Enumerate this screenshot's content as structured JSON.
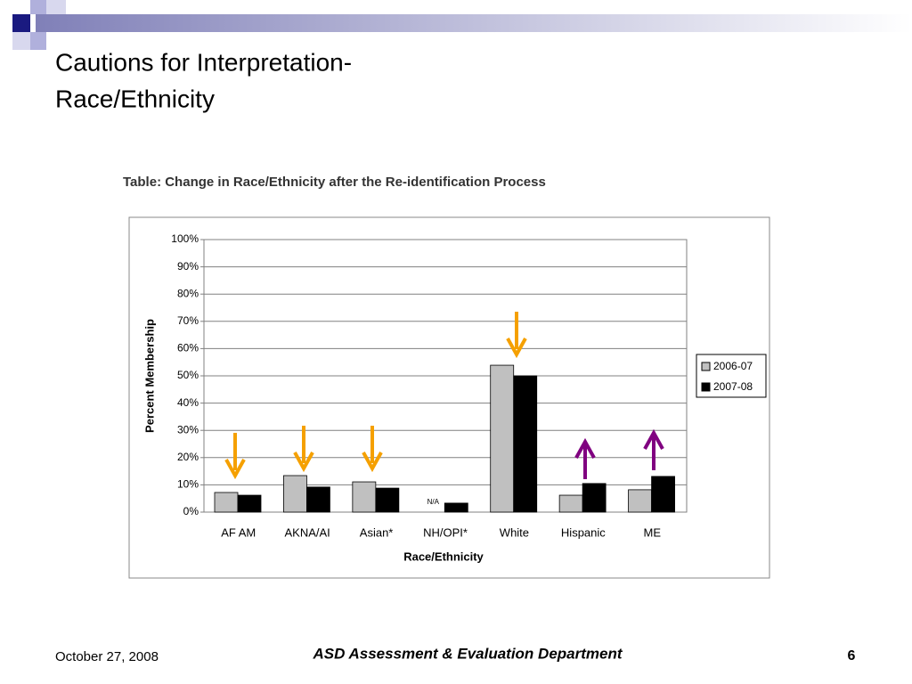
{
  "slide": {
    "title": [
      "Cautions for Interpretation-",
      "Race/Ethnicity"
    ],
    "date": "October 27, 2008",
    "footer": "ASD Assessment & Evaluation Department",
    "page_number": 6
  },
  "chart_data": {
    "type": "bar",
    "title": "Table: Change in Race/Ethnicity after the Re-identification Process",
    "x_label": "Race/Ethnicity",
    "y_label": "Percent Membership",
    "categories": [
      "AF AM",
      "AKNA/AI",
      "Asian*",
      "NH/OPI*",
      "White",
      "Hispanic",
      "ME"
    ],
    "series": [
      {
        "name": "2006-07",
        "color": "#c0c0c0",
        "values": [
          7.2,
          13.4,
          11.1,
          null,
          53.9,
          6.2,
          8.2
        ],
        "value_labels": [
          null,
          null,
          null,
          "N/A",
          null,
          null,
          null
        ]
      },
      {
        "name": "2007-08",
        "color": "#000000",
        "values": [
          6.2,
          9.2,
          8.8,
          3.3,
          50,
          10.5,
          13.1
        ]
      }
    ],
    "ylim": [
      0,
      100
    ],
    "yticks": [
      {
        "value": 0,
        "label": "0%"
      },
      {
        "value": 10,
        "label": "10%"
      },
      {
        "value": 20,
        "label": "20%"
      },
      {
        "value": 30,
        "label": "30%"
      },
      {
        "value": 40,
        "label": "40%"
      },
      {
        "value": 50,
        "label": "50%"
      },
      {
        "value": 60,
        "label": "60%"
      },
      {
        "value": 70,
        "label": "70%"
      },
      {
        "value": 80,
        "label": "80%"
      },
      {
        "value": 90,
        "label": "90%"
      },
      {
        "value": 100,
        "label": "100%"
      }
    ],
    "grid": true,
    "legend": "right"
  }
}
